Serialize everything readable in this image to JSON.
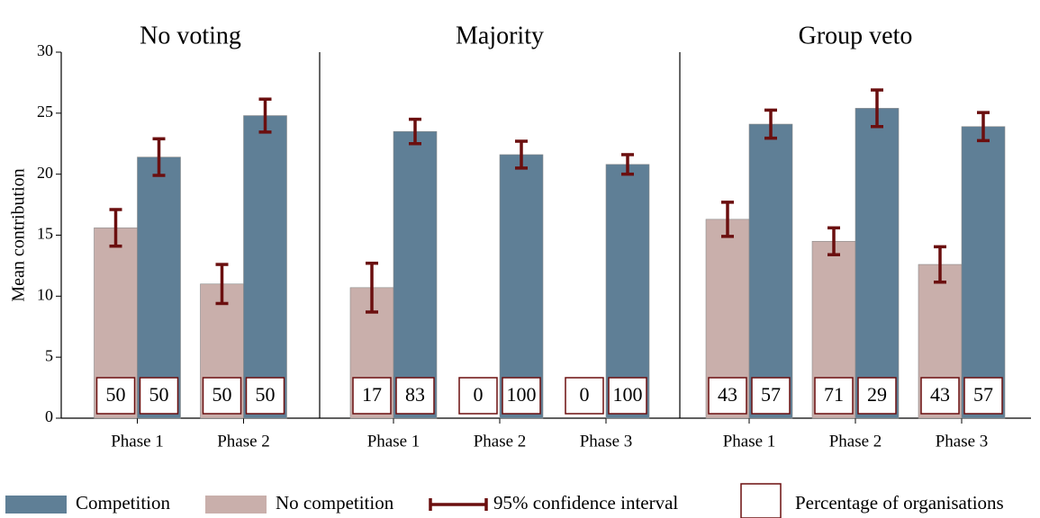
{
  "chart_data": [
    {
      "type": "bar",
      "title": "No voting",
      "ylabel": "Mean contribution",
      "categories": [
        "Phase 1",
        "Phase 2"
      ],
      "series": [
        {
          "name": "No competition",
          "color": "#c9afab",
          "values": [
            15.6,
            11.0
          ],
          "errors": [
            1.5,
            1.6
          ],
          "percentages": [
            50,
            50
          ]
        },
        {
          "name": "Competition",
          "color": "#5f7f96",
          "values": [
            21.4,
            24.8
          ],
          "errors": [
            1.5,
            1.35
          ],
          "percentages": [
            50,
            50
          ]
        }
      ],
      "ylim": [
        0,
        30
      ],
      "yticks": [
        0,
        5,
        10,
        15,
        20,
        25,
        30
      ],
      "error_label": "95% confidence interval",
      "percentage_label": "Percentage of organisations"
    },
    {
      "type": "bar",
      "title": "Majority",
      "categories": [
        "Phase 1",
        "Phase 2",
        "Phase 3"
      ],
      "series": [
        {
          "name": "No competition",
          "color": "#c9afab",
          "values": [
            10.7,
            null,
            null
          ],
          "errors": [
            2.0,
            null,
            null
          ],
          "percentages": [
            17,
            0,
            0
          ]
        },
        {
          "name": "Competition",
          "color": "#5f7f96",
          "values": [
            23.5,
            21.6,
            20.8
          ],
          "errors": [
            1.0,
            1.1,
            0.8
          ],
          "percentages": [
            83,
            100,
            100
          ]
        }
      ],
      "ylim": [
        0,
        30
      ]
    },
    {
      "type": "bar",
      "title": "Group veto",
      "categories": [
        "Phase 1",
        "Phase 2",
        "Phase 3"
      ],
      "series": [
        {
          "name": "No competition",
          "color": "#c9afab",
          "values": [
            16.3,
            14.5,
            12.6
          ],
          "errors": [
            1.4,
            1.1,
            1.45
          ],
          "percentages": [
            43,
            71,
            43
          ]
        },
        {
          "name": "Competition",
          "color": "#5f7f96",
          "values": [
            24.1,
            25.4,
            23.9
          ],
          "errors": [
            1.15,
            1.5,
            1.15
          ],
          "percentages": [
            57,
            29,
            57
          ]
        }
      ],
      "ylim": [
        0,
        30
      ]
    }
  ]
}
